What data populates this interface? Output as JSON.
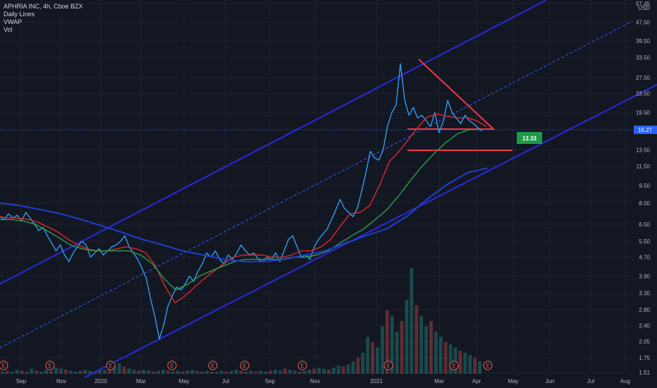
{
  "header": {
    "symbol_line": "APHRIA INC, 4h, Cboe BZX",
    "indicators": [
      "Daily Lines",
      "VWAP",
      "Vol"
    ]
  },
  "colors": {
    "background": "#131722",
    "price_line": "#2f9cf0",
    "ma_fast": "#e0262f",
    "ma_slow": "#26a14a",
    "vwap": "#1e3fd0",
    "channel": "#2a2ae0",
    "triangle": "#f23645",
    "target_tag": "#1f9a4a",
    "last_price_tag": "#2962ff"
  },
  "chart_data": {
    "type": "line",
    "x_axis_labels": [
      "Sep",
      "Nov",
      "2020",
      "Mar",
      "May",
      "Jul",
      "Sep",
      "Nov",
      "2021",
      "Mar",
      "Apr",
      "May",
      "Jun",
      "Jul",
      "Aug"
    ],
    "y_axis_labels": [
      "57.45",
      "47.50",
      "39.50",
      "33.50",
      "27.50",
      "23.50",
      "19.50",
      "16.27",
      "13.50",
      "11.50",
      "9.50",
      "8.00",
      "6.50",
      "5.50",
      "4.70",
      "3.90",
      "3.30",
      "2.80",
      "2.40",
      "2.05",
      "1.75",
      "1.51"
    ],
    "y_axis_unit": "USD",
    "y_scale": "log",
    "y_range": [
      1.51,
      57.45
    ],
    "last_price": "16.27",
    "target_label": "13.33",
    "earnings_marker": "E",
    "earnings_marker_count": 10,
    "series": [
      {
        "key": "price",
        "values": [
          7.0,
          6.8,
          7.2,
          6.9,
          7.1,
          6.7,
          7.3,
          6.9,
          6.5,
          6.1,
          6.3,
          5.8,
          5.4,
          5.0,
          5.3,
          4.8,
          4.5,
          4.9,
          5.2,
          5.5,
          5.3,
          4.7,
          4.9,
          5.1,
          4.8,
          5.0,
          5.2,
          5.3,
          5.5,
          5.8,
          5.2,
          4.9,
          4.6,
          4.2,
          3.8,
          3.1,
          2.6,
          2.1,
          2.4,
          2.9,
          3.2,
          3.5,
          3.4,
          3.6,
          3.9,
          3.7,
          4.1,
          4.4,
          4.9,
          4.7,
          5.0,
          4.6,
          4.4,
          4.8,
          4.6,
          4.9,
          5.3,
          5.0,
          4.8,
          4.9,
          4.6,
          4.5,
          4.7,
          4.6,
          4.9,
          4.5,
          5.0,
          5.6,
          5.8,
          5.2,
          4.7,
          4.8,
          4.6,
          5.2,
          5.6,
          5.9,
          6.2,
          6.8,
          7.5,
          8.3,
          7.6,
          7.3,
          7.0,
          7.6,
          9.0,
          10.8,
          13.3,
          12.5,
          12.2,
          13.5,
          17.0,
          19.5,
          21.0,
          31.5,
          22.0,
          19.0,
          20.5,
          18.5,
          19.0,
          18.0,
          17.0,
          19.5,
          16.0,
          18.0,
          22.0,
          19.5,
          18.5,
          17.5,
          19.0,
          18.0,
          17.5,
          16.8,
          16.27
        ]
      },
      {
        "key": "ma_fast",
        "values": [
          7.0,
          6.9,
          6.9,
          6.8,
          6.6,
          6.3,
          6.0,
          5.6,
          5.3,
          5.1,
          5.0,
          5.0,
          5.1,
          5.2,
          5.1,
          4.9,
          4.3,
          3.5,
          3.0,
          3.2,
          3.5,
          3.8,
          4.1,
          4.4,
          4.7,
          4.8,
          4.8,
          4.8,
          4.7,
          4.7,
          4.8,
          5.0,
          5.0,
          5.2,
          5.6,
          6.4,
          7.2,
          7.3,
          7.8,
          9.5,
          12.0,
          13.3,
          15.0,
          17.0,
          18.8,
          19.2,
          18.8,
          18.5,
          18.6,
          18.0,
          17.0
        ]
      },
      {
        "key": "ma_slow",
        "values": [
          6.8,
          6.8,
          6.7,
          6.5,
          6.1,
          5.7,
          5.3,
          5.1,
          5.0,
          5.0,
          5.0,
          5.0,
          4.8,
          4.4,
          3.8,
          3.4,
          3.6,
          3.9,
          4.1,
          4.3,
          4.5,
          4.6,
          4.6,
          4.6,
          4.6,
          4.7,
          4.7,
          4.8,
          5.0,
          5.4,
          5.8,
          6.2,
          6.8,
          7.5,
          8.6,
          10.0,
          11.5,
          13.0,
          14.5,
          15.8,
          16.5,
          16.5
        ]
      },
      {
        "key": "vwap",
        "values": [
          8.0,
          7.8,
          7.5,
          7.2,
          6.8,
          6.4,
          6.0,
          5.6,
          5.3,
          5.0,
          4.8,
          4.6,
          4.5,
          4.5,
          4.6,
          4.8,
          5.0,
          5.4,
          5.8,
          6.2,
          7.0,
          8.3,
          9.6,
          10.8,
          11.3
        ]
      }
    ],
    "volume": [
      2,
      3,
      2,
      4,
      3,
      2,
      5,
      3,
      2,
      4,
      3,
      6,
      5,
      4,
      3,
      2,
      3,
      4,
      3,
      2,
      5,
      4,
      6,
      8,
      10,
      7,
      5,
      4,
      3,
      4,
      3,
      2,
      3,
      4,
      3,
      2,
      3,
      2,
      3,
      4,
      3,
      2,
      3,
      2,
      2,
      3,
      2,
      3,
      4,
      3,
      2,
      3,
      2,
      3,
      2,
      3,
      4,
      3,
      5,
      4,
      3,
      2,
      3,
      4,
      5,
      6,
      5,
      4,
      6,
      8,
      7,
      9,
      12,
      15,
      20,
      35,
      30,
      25,
      45,
      60,
      55,
      40,
      50,
      70,
      100,
      65,
      55,
      45,
      50,
      40,
      35,
      30,
      28,
      25,
      22,
      20,
      18,
      15,
      12
    ]
  }
}
